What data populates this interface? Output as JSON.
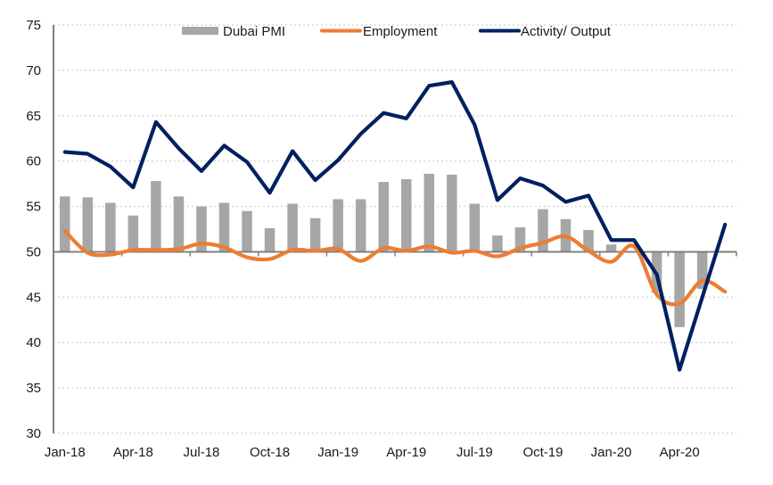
{
  "chart_data": {
    "type": "bar+line",
    "title": "",
    "xlabel": "",
    "ylabel": "",
    "ylim": [
      30,
      75
    ],
    "yticks": [
      30,
      35,
      40,
      45,
      50,
      55,
      60,
      65,
      70,
      75
    ],
    "baseline": 50,
    "grid": true,
    "legend_position": "top-center",
    "categories": [
      "Jan-18",
      "Feb-18",
      "Mar-18",
      "Apr-18",
      "May-18",
      "Jun-18",
      "Jul-18",
      "Aug-18",
      "Sep-18",
      "Oct-18",
      "Nov-18",
      "Dec-18",
      "Jan-19",
      "Feb-19",
      "Mar-19",
      "Apr-19",
      "May-19",
      "Jun-19",
      "Jul-19",
      "Aug-19",
      "Sep-19",
      "Oct-19",
      "Nov-19",
      "Dec-19",
      "Jan-20",
      "Feb-20",
      "Mar-20",
      "Apr-20",
      "May-20",
      "Jun-20"
    ],
    "xtick_labels": [
      "Jan-18",
      "Apr-18",
      "Jul-18",
      "Oct-18",
      "Jan-19",
      "Apr-19",
      "Jul-19",
      "Oct-19",
      "Jan-20",
      "Apr-20"
    ],
    "series": [
      {
        "name": "Dubai PMI",
        "type": "bar",
        "color": "#a6a6a6",
        "values": [
          56.1,
          56.0,
          55.4,
          54.0,
          57.8,
          56.1,
          55.0,
          55.4,
          54.5,
          52.6,
          55.3,
          53.7,
          55.8,
          55.8,
          57.7,
          58.0,
          58.6,
          58.5,
          55.3,
          51.8,
          52.7,
          54.7,
          53.6,
          52.4,
          50.8,
          49.9,
          45.5,
          41.7,
          45.9,
          50.1
        ]
      },
      {
        "name": "Employment",
        "type": "line",
        "smooth": true,
        "color": "#ed7d31",
        "values": [
          52.3,
          49.9,
          49.7,
          50.2,
          50.2,
          50.3,
          50.9,
          50.5,
          49.4,
          49.2,
          50.2,
          50.1,
          50.3,
          49.0,
          50.4,
          50.1,
          50.6,
          49.9,
          50.1,
          49.5,
          50.4,
          51.0,
          51.7,
          50.1,
          48.9,
          50.6,
          45.3,
          44.3,
          46.8,
          45.6
        ]
      },
      {
        "name": "Activity/ Output",
        "type": "line",
        "smooth": false,
        "color": "#002060",
        "values": [
          61.0,
          60.8,
          59.4,
          57.1,
          64.3,
          61.4,
          58.9,
          61.7,
          59.9,
          56.5,
          61.1,
          57.9,
          60.1,
          63.0,
          65.3,
          64.7,
          68.3,
          68.7,
          64.0,
          55.7,
          58.1,
          57.3,
          55.5,
          56.2,
          51.3,
          51.3,
          47.5,
          37.0,
          45.0,
          53.0
        ]
      }
    ]
  }
}
